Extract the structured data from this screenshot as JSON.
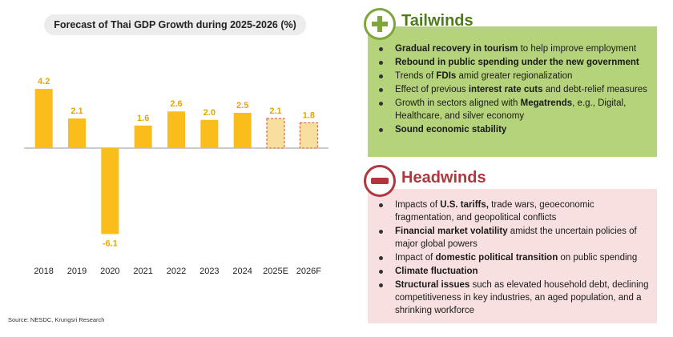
{
  "chart_data": {
    "type": "bar",
    "title": "Forecast of Thai GDP Growth during 2025-2026 (%)",
    "categories": [
      "2018",
      "2019",
      "2020",
      "2021",
      "2022",
      "2023",
      "2024",
      "2025E",
      "2026F"
    ],
    "values": [
      4.2,
      2.1,
      -6.1,
      1.6,
      2.6,
      2.0,
      2.5,
      2.1,
      1.8
    ],
    "value_labels": [
      "4.2",
      "2.1",
      "-6.1",
      "1.6",
      "2.6",
      "2.0",
      "2.5",
      "2.1",
      "1.8"
    ],
    "forecast": [
      false,
      false,
      false,
      false,
      false,
      false,
      false,
      true,
      true
    ],
    "xlabel": "",
    "ylabel": "",
    "ylim": [
      -6.1,
      4.2
    ],
    "grid": false,
    "colors": {
      "actual": "#fbbd1c",
      "forecast_fill": "#f8dfa0",
      "forecast_border": "#d94e2a",
      "label": "#e8a600",
      "axis": "#999999"
    }
  },
  "source": "Source: NESDC, Krungsri Research",
  "tailwinds": {
    "title": "Tailwinds",
    "icon": "plus-icon",
    "color": "#7ea63a",
    "background": "#b5d37a",
    "items": [
      {
        "parts": [
          {
            "t": "Gradual recovery in tourism",
            "b": true
          },
          {
            "t": " to help improve employment",
            "b": false
          }
        ]
      },
      {
        "parts": [
          {
            "t": "Rebound in public spending under the new government",
            "b": true
          }
        ]
      },
      {
        "parts": [
          {
            "t": "Trends of  ",
            "b": false
          },
          {
            "t": "FDIs",
            "b": true
          },
          {
            "t": " amid greater regionalization",
            "b": false
          }
        ]
      },
      {
        "parts": [
          {
            "t": "Effect of previous ",
            "b": false
          },
          {
            "t": "interest rate cuts",
            "b": true
          },
          {
            "t": " and debt-relief measures",
            "b": false
          }
        ]
      },
      {
        "parts": [
          {
            "t": "Growth in sectors aligned with ",
            "b": false
          },
          {
            "t": "Megatrends",
            "b": true
          },
          {
            "t": ", e.g., Digital, Healthcare, and silver economy",
            "b": false
          }
        ]
      },
      {
        "parts": [
          {
            "t": "Sound economic stability",
            "b": true
          }
        ]
      }
    ]
  },
  "headwinds": {
    "title": "Headwinds",
    "icon": "minus-icon",
    "color": "#b0373d",
    "background": "#f9e0e0",
    "items": [
      {
        "parts": [
          {
            "t": "Impacts of ",
            "b": false
          },
          {
            "t": "U.S. tariffs,",
            "b": true
          },
          {
            "t": " trade wars, geoeconomic fragmentation, and geopolitical conflicts",
            "b": false
          }
        ]
      },
      {
        "parts": [
          {
            "t": "Financial market volatility",
            "b": true
          },
          {
            "t": " amidst the uncertain policies of major global powers",
            "b": false
          }
        ]
      },
      {
        "parts": [
          {
            "t": "Impact of ",
            "b": false
          },
          {
            "t": "domestic political transition",
            "b": true
          },
          {
            "t": " on public spending",
            "b": false
          }
        ]
      },
      {
        "parts": [
          {
            "t": "Climate fluctuation",
            "b": true
          }
        ]
      },
      {
        "parts": [
          {
            "t": "Structural issues",
            "b": true
          },
          {
            "t": " such as elevated household debt, declining competitiveness in key industries, an aged population, and a shrinking workforce",
            "b": false
          }
        ]
      }
    ]
  }
}
